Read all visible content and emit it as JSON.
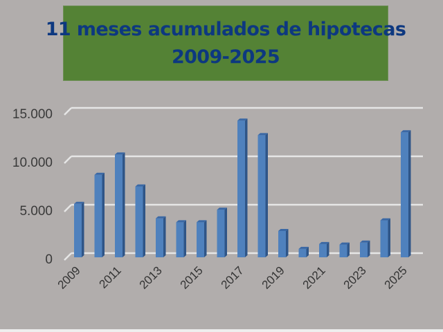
{
  "title": {
    "line1": "11 meses acumulados de hipotecas",
    "line2": "2009-2025"
  },
  "colors": {
    "background": "#b1adac",
    "title_box": "#548235",
    "title_text": "#0d3880",
    "bar_front": "#4f81bd",
    "bar_side": "#2f5587",
    "bar_top": "#3a68a5",
    "gridline": "#e6e6e6"
  },
  "chart_data": {
    "type": "bar",
    "title": "11 meses acumulados de hipotecas 2009-2025",
    "xlabel": "",
    "ylabel": "",
    "style": "3d-column",
    "categories": [
      "2009",
      "2010",
      "2011",
      "2012",
      "2013",
      "2014",
      "2015",
      "2016",
      "2017",
      "2018",
      "2019",
      "2020",
      "2021",
      "2022",
      "2023",
      "2024",
      "2025"
    ],
    "values": [
      5300,
      8300,
      10400,
      7100,
      3800,
      3400,
      3400,
      4700,
      13900,
      12400,
      2500,
      650,
      1150,
      1100,
      1300,
      3600,
      12700
    ],
    "ylim": [
      0,
      15000
    ],
    "yticks": [
      0,
      5000,
      10000,
      15000
    ],
    "ytick_labels": [
      "0",
      "5.000",
      "10.000",
      "15.000"
    ],
    "xtick_labels_shown": [
      "2009",
      "2011",
      "2013",
      "2015",
      "2017",
      "2019",
      "2021",
      "2023",
      "2025"
    ],
    "grid": true,
    "legend": null
  }
}
